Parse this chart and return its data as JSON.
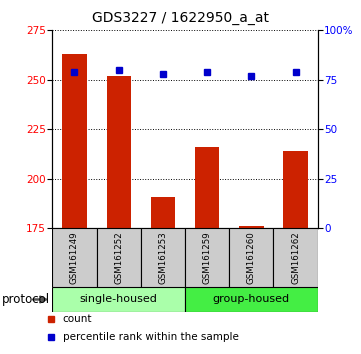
{
  "title": "GDS3227 / 1622950_a_at",
  "samples": [
    "GSM161249",
    "GSM161252",
    "GSM161253",
    "GSM161259",
    "GSM161260",
    "GSM161262"
  ],
  "counts": [
    263,
    252,
    191,
    216,
    176,
    214
  ],
  "percentiles": [
    79,
    80,
    78,
    79,
    77,
    79
  ],
  "ylim_left": [
    175,
    275
  ],
  "ylim_right": [
    0,
    100
  ],
  "yticks_left": [
    175,
    200,
    225,
    250,
    275
  ],
  "yticks_right": [
    0,
    25,
    50,
    75,
    100
  ],
  "bar_color": "#cc2200",
  "dot_color": "#0000cc",
  "bar_width": 0.55,
  "groups": [
    {
      "label": "single-housed",
      "samples": [
        "GSM161249",
        "GSM161252",
        "GSM161253"
      ],
      "color": "#aaffaa"
    },
    {
      "label": "group-housed",
      "samples": [
        "GSM161259",
        "GSM161260",
        "GSM161262"
      ],
      "color": "#44ee44"
    }
  ],
  "group_label": "protocol",
  "legend_bar_label": "count",
  "legend_dot_label": "percentile rank within the sample",
  "title_fontsize": 10,
  "tick_fontsize": 7.5,
  "label_fontsize": 8.5
}
